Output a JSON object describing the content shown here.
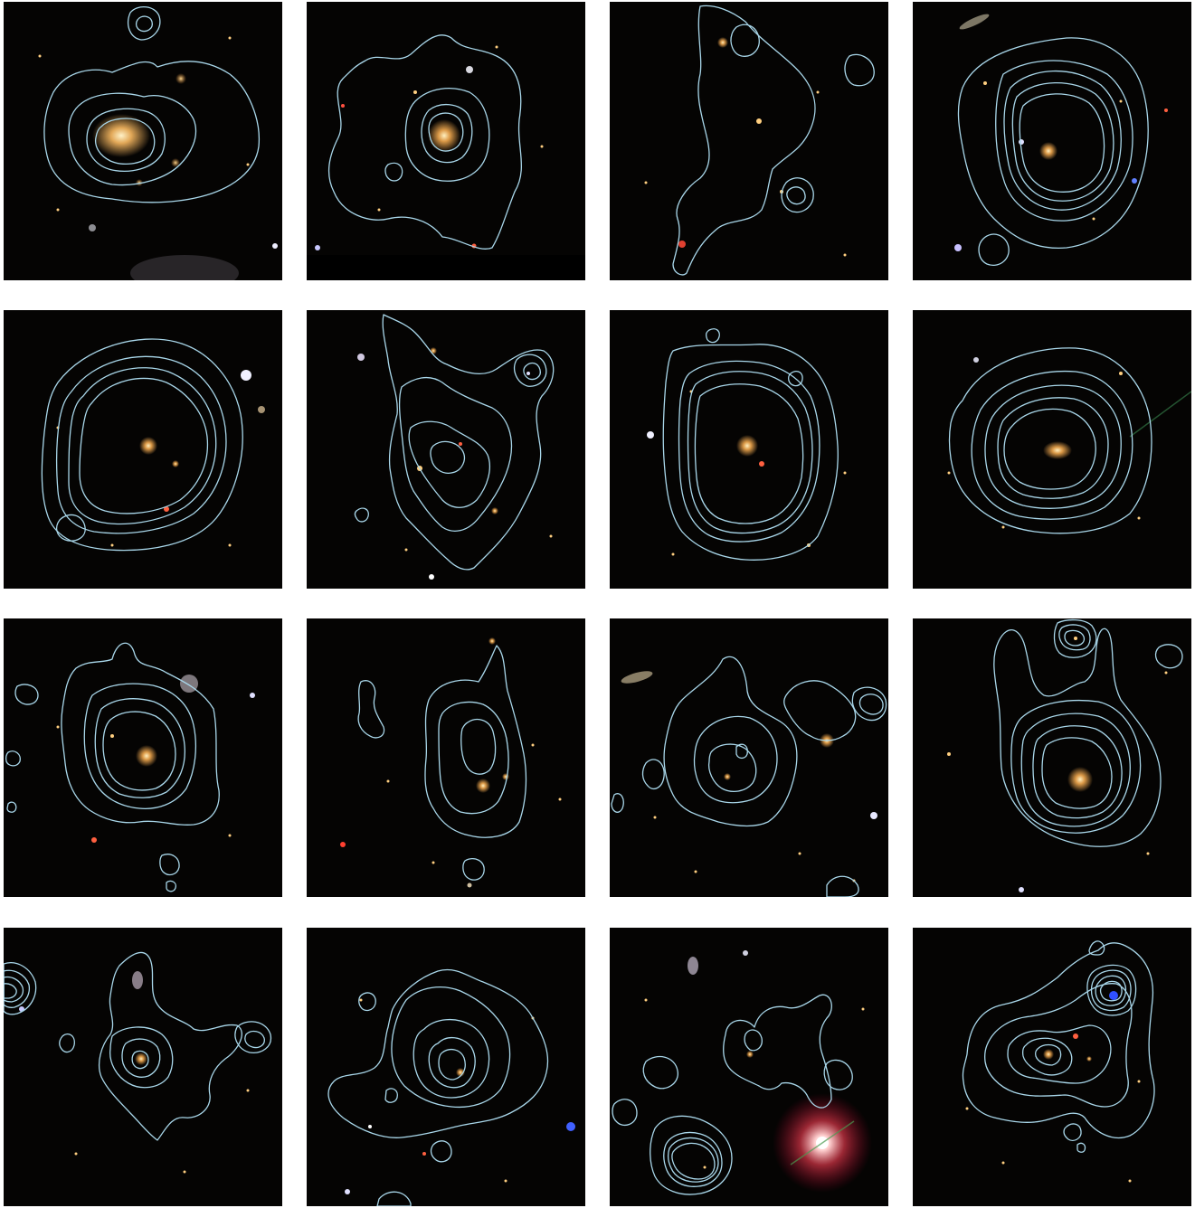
{
  "figure": {
    "rows": 4,
    "cols": 4,
    "contour_color": "#a9d7ea",
    "background_color": "#050403"
  },
  "panels": [
    {
      "id": 1,
      "overlay": "contours",
      "contour_levels": 4
    },
    {
      "id": 2,
      "overlay": "contours",
      "contour_levels": 4
    },
    {
      "id": 3,
      "overlay": "contours",
      "contour_levels": 2
    },
    {
      "id": 4,
      "overlay": "contours",
      "contour_levels": 5
    },
    {
      "id": 5,
      "overlay": "contours",
      "contour_levels": 5
    },
    {
      "id": 6,
      "overlay": "contours",
      "contour_levels": 4
    },
    {
      "id": 7,
      "overlay": "contours",
      "contour_levels": 6
    },
    {
      "id": 8,
      "overlay": "contours",
      "contour_levels": 5
    },
    {
      "id": 9,
      "overlay": "contours",
      "contour_levels": 4
    },
    {
      "id": 10,
      "overlay": "contours",
      "contour_levels": 3
    },
    {
      "id": 11,
      "overlay": "contours",
      "contour_levels": 4
    },
    {
      "id": 12,
      "overlay": "contours",
      "contour_levels": 5
    },
    {
      "id": 13,
      "overlay": "contours",
      "contour_levels": 4
    },
    {
      "id": 14,
      "overlay": "contours",
      "contour_levels": 4
    },
    {
      "id": 15,
      "overlay": "contours",
      "contour_levels": 3
    },
    {
      "id": 16,
      "overlay": "contours",
      "contour_levels": 4
    }
  ]
}
